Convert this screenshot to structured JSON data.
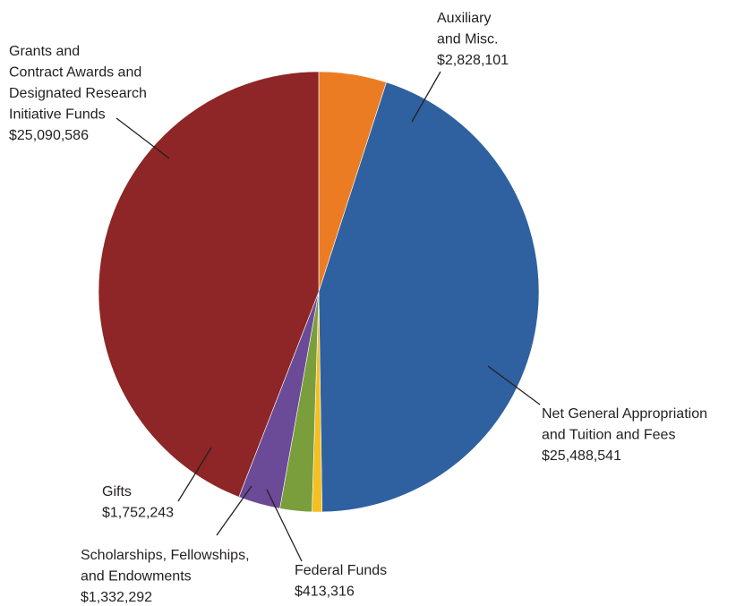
{
  "chart_data": {
    "type": "pie",
    "title": "",
    "slices": [
      {
        "name": "Auxiliary and Misc.",
        "label_lines": [
          "Auxiliary",
          "and Misc."
        ],
        "value_text": "$2,828,101",
        "value": 2828101,
        "color": "#ec7c23"
      },
      {
        "name": "Net General Appropriation and Tuition and Fees",
        "label_lines": [
          "Net General Appropriation",
          "and Tuition and Fees"
        ],
        "value_text": "$25,488,541",
        "value": 25488541,
        "color": "#2f61a0"
      },
      {
        "name": "Federal Funds",
        "label_lines": [
          "Federal Funds"
        ],
        "value_text": "$413,316",
        "value": 413316,
        "color": "#f3bf23"
      },
      {
        "name": "Scholarships, Fellowships, and Endowments",
        "label_lines": [
          "Scholarships, Fellowships,",
          "and Endowments"
        ],
        "value_text": "$1,332,292",
        "value": 1332292,
        "color": "#7a9e3c"
      },
      {
        "name": "Gifts",
        "label_lines": [
          "Gifts"
        ],
        "value_text": "$1,752,243",
        "value": 1752243,
        "color": "#6b4b97"
      },
      {
        "name": "Grants and Contract Awards and Designated Research Initiative Funds",
        "label_lines": [
          "Grants and",
          "Contract Awards and",
          "Designated Research",
          "Initiative Funds"
        ],
        "value_text": "$25,090,586",
        "value": 25090586,
        "color": "#8e2526"
      }
    ]
  }
}
